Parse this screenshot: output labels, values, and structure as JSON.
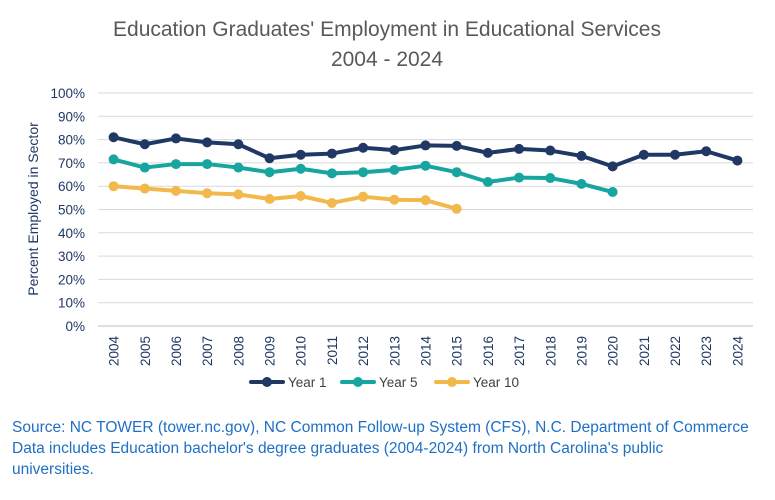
{
  "chart_data": {
    "type": "line",
    "title_line1": "Education Graduates' Employment in Educational Services",
    "title_line2": "2004 - 2024",
    "ylabel": "Percent Employed in Sector",
    "xlabel": "",
    "ylim": [
      0,
      100
    ],
    "y_ticks": [
      "0%",
      "10%",
      "20%",
      "30%",
      "40%",
      "50%",
      "60%",
      "70%",
      "80%",
      "90%",
      "100%"
    ],
    "categories": [
      "2004",
      "2005",
      "2006",
      "2007",
      "2008",
      "2009",
      "2010",
      "2011",
      "2012",
      "2013",
      "2014",
      "2015",
      "2016",
      "2017",
      "2018",
      "2019",
      "2020",
      "2021",
      "2022",
      "2023",
      "2024"
    ],
    "grid": true,
    "legend_position": "bottom",
    "series": [
      {
        "name": "Year 1",
        "color": "#1f3864",
        "values": [
          81,
          78,
          80.5,
          78.8,
          78,
          72,
          73.5,
          74,
          76.5,
          75.5,
          77.5,
          77.3,
          74.3,
          76,
          75.3,
          73,
          68.5,
          73.5,
          73.5,
          75,
          71
        ]
      },
      {
        "name": "Year 5",
        "color": "#17a5a0",
        "values": [
          71.5,
          68,
          69.5,
          69.5,
          68,
          66,
          67.5,
          65.5,
          66,
          67,
          68.8,
          66,
          61.8,
          63.7,
          63.5,
          61,
          57.5,
          null,
          null,
          null,
          null
        ]
      },
      {
        "name": "Year 10",
        "color": "#f2b84b",
        "values": [
          60,
          59,
          58,
          57,
          56.5,
          54.5,
          55.8,
          52.8,
          55.5,
          54.2,
          54,
          50.3,
          null,
          null,
          null,
          null,
          null,
          null,
          null,
          null,
          null
        ]
      }
    ]
  },
  "source": {
    "line1": "Source: NC TOWER (tower.nc.gov), NC Common Follow-up System (CFS), N.C. Department of Commerce",
    "line2": "Data includes Education bachelor's degree graduates (2004-2024) from North Carolina's public",
    "line3": "universities."
  }
}
